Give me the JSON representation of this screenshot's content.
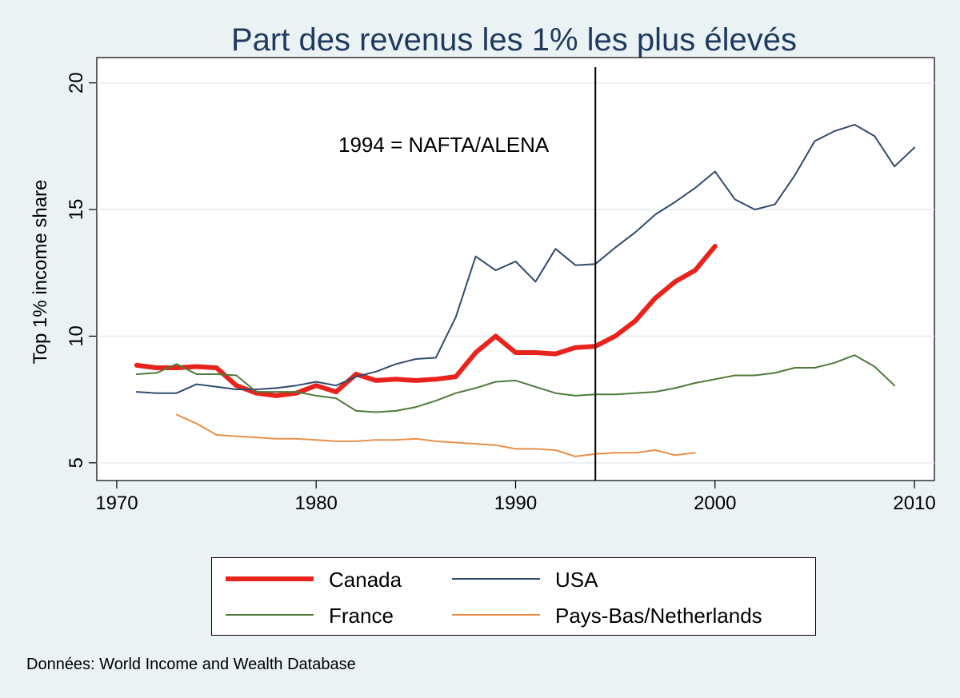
{
  "chart_data": {
    "type": "line",
    "title": "Part des revenus les 1% les plus élevés",
    "xlabel": "",
    "ylabel": "Top 1% income share",
    "xlim": [
      1969,
      2011
    ],
    "ylim": [
      4.3,
      21.0
    ],
    "xticks": [
      1970,
      1980,
      1990,
      2000,
      2010
    ],
    "yticks": [
      5,
      10,
      15,
      20
    ],
    "grid": true,
    "legend_position": "bottom",
    "annotation": {
      "x": 1994,
      "text": "1994 = NAFTA/ALENA"
    },
    "series": [
      {
        "name": "Canada",
        "color": "#e8231c",
        "x": [
          1971,
          1972,
          1973,
          1974,
          1975,
          1976,
          1977,
          1978,
          1979,
          1980,
          1981,
          1982,
          1983,
          1984,
          1985,
          1986,
          1987,
          1988,
          1989,
          1990,
          1991,
          1992,
          1993,
          1994,
          1995,
          1996,
          1997,
          1998,
          1999,
          2000
        ],
        "values": [
          8.85,
          8.75,
          8.75,
          8.8,
          8.75,
          8.05,
          7.75,
          7.65,
          7.75,
          8.05,
          7.8,
          8.5,
          8.25,
          8.3,
          8.25,
          8.3,
          8.4,
          9.35,
          10.0,
          9.35,
          9.35,
          9.3,
          9.55,
          9.6,
          10.0,
          10.6,
          11.5,
          12.15,
          12.6,
          13.55
        ]
      },
      {
        "name": "USA",
        "color": "#2f4b6e",
        "x": [
          1971,
          1972,
          1973,
          1974,
          1975,
          1976,
          1977,
          1978,
          1979,
          1980,
          1981,
          1982,
          1983,
          1984,
          1985,
          1986,
          1987,
          1988,
          1989,
          1990,
          1991,
          1992,
          1993,
          1994,
          1995,
          1996,
          1997,
          1998,
          1999,
          2000,
          2001,
          2002,
          2003,
          2004,
          2005,
          2006,
          2007,
          2008,
          2009,
          2010
        ],
        "values": [
          7.8,
          7.75,
          7.75,
          8.1,
          8.0,
          7.9,
          7.9,
          7.95,
          8.05,
          8.2,
          8.05,
          8.4,
          8.6,
          8.9,
          9.1,
          9.15,
          10.75,
          13.15,
          12.6,
          12.95,
          12.15,
          13.45,
          12.8,
          12.85,
          13.5,
          14.1,
          14.8,
          15.3,
          15.85,
          16.5,
          15.4,
          15.0,
          15.2,
          16.35,
          17.7,
          18.1,
          18.35,
          17.9,
          16.7,
          17.45
        ]
      },
      {
        "name": "France",
        "color": "#4f7a3a",
        "x": [
          1971,
          1972,
          1973,
          1974,
          1975,
          1976,
          1977,
          1978,
          1979,
          1980,
          1981,
          1982,
          1983,
          1984,
          1985,
          1986,
          1987,
          1988,
          1989,
          1990,
          1991,
          1992,
          1993,
          1994,
          1995,
          1996,
          1997,
          1998,
          1999,
          2000,
          2001,
          2002,
          2003,
          2004,
          2005,
          2006,
          2007,
          2008,
          2009
        ],
        "values": [
          8.5,
          8.55,
          8.9,
          8.5,
          8.5,
          8.45,
          7.8,
          7.8,
          7.8,
          7.65,
          7.55,
          7.05,
          7.0,
          7.05,
          7.2,
          7.45,
          7.75,
          7.95,
          8.2,
          8.25,
          8.0,
          7.75,
          7.65,
          7.7,
          7.7,
          7.75,
          7.8,
          7.95,
          8.15,
          8.3,
          8.45,
          8.45,
          8.55,
          8.75,
          8.75,
          8.95,
          9.25,
          8.8,
          8.05
        ]
      },
      {
        "name": "Pays-Bas/Netherlands",
        "color": "#e8904a",
        "x": [
          1973,
          1974,
          1975,
          1976,
          1977,
          1978,
          1979,
          1980,
          1981,
          1982,
          1983,
          1984,
          1985,
          1986,
          1987,
          1988,
          1989,
          1990,
          1991,
          1992,
          1993,
          1994,
          1995,
          1996,
          1997,
          1998,
          1999
        ],
        "values": [
          6.9,
          6.55,
          6.1,
          6.05,
          6.0,
          5.95,
          5.95,
          5.9,
          5.85,
          5.85,
          5.9,
          5.9,
          5.95,
          5.85,
          5.8,
          5.75,
          5.7,
          5.55,
          5.55,
          5.5,
          5.25,
          5.35,
          5.4,
          5.4,
          5.5,
          5.3,
          5.4
        ]
      }
    ]
  },
  "legend": {
    "items": [
      {
        "label": "Canada",
        "color": "#e8231c"
      },
      {
        "label": "USA",
        "color": "#2f4b6e"
      },
      {
        "label": "France",
        "color": "#4f7a3a"
      },
      {
        "label": "Pays-Bas/Netherlands",
        "color": "#e8904a"
      }
    ]
  },
  "source_note": "Données: World Income and Wealth Database"
}
